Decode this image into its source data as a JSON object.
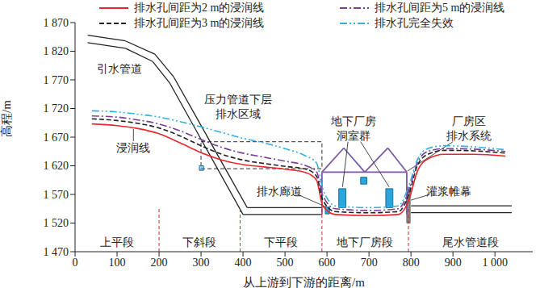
{
  "chart_data": {
    "type": "line",
    "x_label": "从上游到下游的距离/m",
    "y_label": "高程/m",
    "x": [
      40,
      100,
      150,
      200,
      250,
      300,
      350,
      400,
      450,
      500,
      550,
      575,
      590,
      620,
      700,
      770,
      795,
      815,
      840,
      880,
      950,
      1025
    ],
    "series": [
      {
        "name": "排水孔间距为2 m的浸润线",
        "color": "#e8262b",
        "line_style": "solid",
        "values": [
          1693,
          1690,
          1685,
          1676,
          1660,
          1643,
          1630,
          1622,
          1618,
          1614,
          1608,
          1595,
          1550,
          1535,
          1533,
          1535,
          1560,
          1610,
          1632,
          1640,
          1640,
          1637
        ]
      },
      {
        "name": "排水孔间距为3 m的浸润线",
        "color": "#222222",
        "line_style": "dashed",
        "values": [
          1702,
          1699,
          1694,
          1686,
          1672,
          1655,
          1640,
          1630,
          1624,
          1619,
          1614,
          1602,
          1560,
          1540,
          1538,
          1540,
          1570,
          1620,
          1640,
          1647,
          1646,
          1642
        ]
      },
      {
        "name": "排水孔间距为5 m的浸润线",
        "color": "#7a3f9a",
        "line_style": "dashdot",
        "values": [
          1707,
          1705,
          1700,
          1693,
          1681,
          1666,
          1652,
          1642,
          1635,
          1628,
          1620,
          1610,
          1568,
          1545,
          1542,
          1545,
          1578,
          1625,
          1645,
          1650,
          1649,
          1645
        ]
      },
      {
        "name": "排水孔完全失效",
        "color": "#35b0e0",
        "line_style": "dashdotdot",
        "values": [
          1716,
          1714,
          1710,
          1705,
          1697,
          1688,
          1678,
          1668,
          1660,
          1650,
          1637,
          1625,
          1580,
          1550,
          1547,
          1550,
          1585,
          1630,
          1650,
          1655,
          1653,
          1648
        ]
      }
    ],
    "xlim": [
      0,
      1090
    ],
    "xticks": [
      0,
      100,
      200,
      300,
      400,
      500,
      600,
      700,
      800,
      900,
      {
        "value": 1000,
        "label": "1 000"
      }
    ],
    "ylim": [
      1470,
      1870
    ],
    "yticks": [
      {
        "value": 1470,
        "label": "1 470"
      },
      {
        "value": 1520,
        "label": "1 520"
      },
      {
        "value": 1570,
        "label": "1 570"
      },
      {
        "value": 1620,
        "label": "1 620"
      },
      {
        "value": 1670,
        "label": "1 670"
      },
      {
        "value": 1720,
        "label": "1 720"
      },
      {
        "value": 1770,
        "label": "1 770"
      },
      {
        "value": 1820,
        "label": "1 820"
      },
      {
        "value": 1870,
        "label": "1 870"
      }
    ],
    "grid": false,
    "legend": "top",
    "annotations": [
      [
        "引水管道"
      ],
      [
        "浸润线"
      ],
      [
        "压力管道下层",
        "排水区域"
      ],
      [
        "地下厂房",
        "洞室群"
      ],
      [
        "厂房区",
        "排水系统"
      ],
      [
        "排水廊道"
      ],
      [
        "灌浆帷幕"
      ]
    ],
    "sections": {
      "labels": [
        "上平段",
        "下斜段",
        "下平段",
        "地下厂房段",
        "尾水管道段"
      ],
      "boundaries": [
        200,
        393,
        588,
        794
      ]
    }
  }
}
